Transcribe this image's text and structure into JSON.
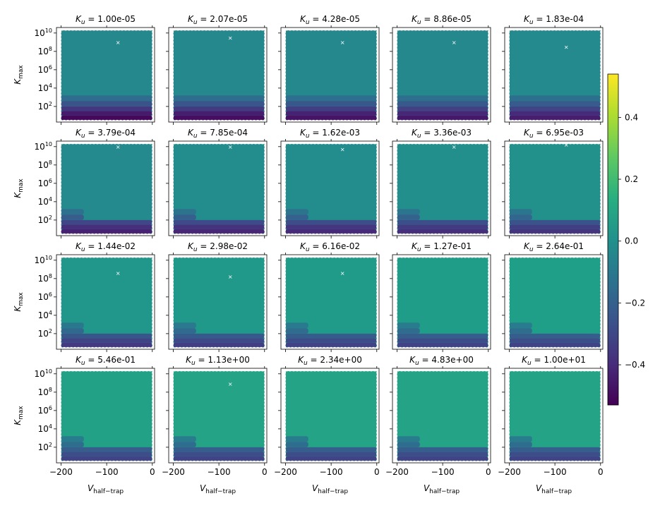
{
  "chart_data": {
    "type": "heatmap",
    "layout": {
      "rows": 4,
      "cols": 5
    },
    "subplot_title_prefix": "K_u = ",
    "subplot_titles": [
      "1.00e-05",
      "2.07e-05",
      "4.28e-05",
      "8.86e-05",
      "1.83e-04",
      "3.79e-04",
      "7.85e-04",
      "1.62e-03",
      "3.36e-03",
      "6.95e-03",
      "1.44e-02",
      "2.98e-02",
      "6.16e-02",
      "1.27e-01",
      "2.64e-01",
      "5.46e-01",
      "1.13e+00",
      "2.34e+00",
      "4.83e+00",
      "1.00e+01"
    ],
    "xlabel": "V_half-trap",
    "ylabel": "K_max",
    "x_ticks": [
      "−200",
      "−100",
      "0"
    ],
    "x_tick_values": [
      -200,
      -100,
      0
    ],
    "y_ticks": [
      {
        "base": "10",
        "exp": "2",
        "value": 2
      },
      {
        "base": "10",
        "exp": "4",
        "value": 4
      },
      {
        "base": "10",
        "exp": "6",
        "value": 6
      },
      {
        "base": "10",
        "exp": "8",
        "value": 8
      },
      {
        "base": "10",
        "exp": "10",
        "value": 10
      }
    ],
    "xlim": [
      -210,
      5
    ],
    "ylim_log10": [
      0.3,
      10.6
    ],
    "y_scale": "log",
    "colorbar": {
      "colormap": "viridis",
      "range": [
        -0.53,
        0.54
      ],
      "ticks": [
        "0.4",
        "0.2",
        "0.0",
        "−0.2",
        "−0.4"
      ],
      "tick_values": [
        0.4,
        0.2,
        0.0,
        -0.2,
        -0.4
      ]
    },
    "optimum_marker_x": [
      -75,
      -75,
      -75,
      -75,
      -75,
      -75,
      -75,
      -75,
      -75,
      -75,
      -75,
      -75,
      -75,
      null,
      null,
      null,
      -75,
      null,
      null,
      null
    ],
    "optimum_marker_log10": [
      9.0,
      9.5,
      9.0,
      9.0,
      8.5,
      10.0,
      10.0,
      9.7,
      10.0,
      10.2,
      8.6,
      8.2,
      8.6,
      null,
      null,
      null,
      8.9,
      null,
      null,
      null
    ],
    "bulk_values": [
      -0.03,
      -0.03,
      -0.03,
      -0.03,
      -0.02,
      -0.02,
      -0.01,
      -0.01,
      0.0,
      0.01,
      0.03,
      0.04,
      0.05,
      0.06,
      0.07,
      0.08,
      0.09,
      0.09,
      0.09,
      0.09
    ],
    "low_band_values": [
      -0.5,
      -0.45,
      -0.35,
      -0.25,
      -0.15
    ]
  }
}
